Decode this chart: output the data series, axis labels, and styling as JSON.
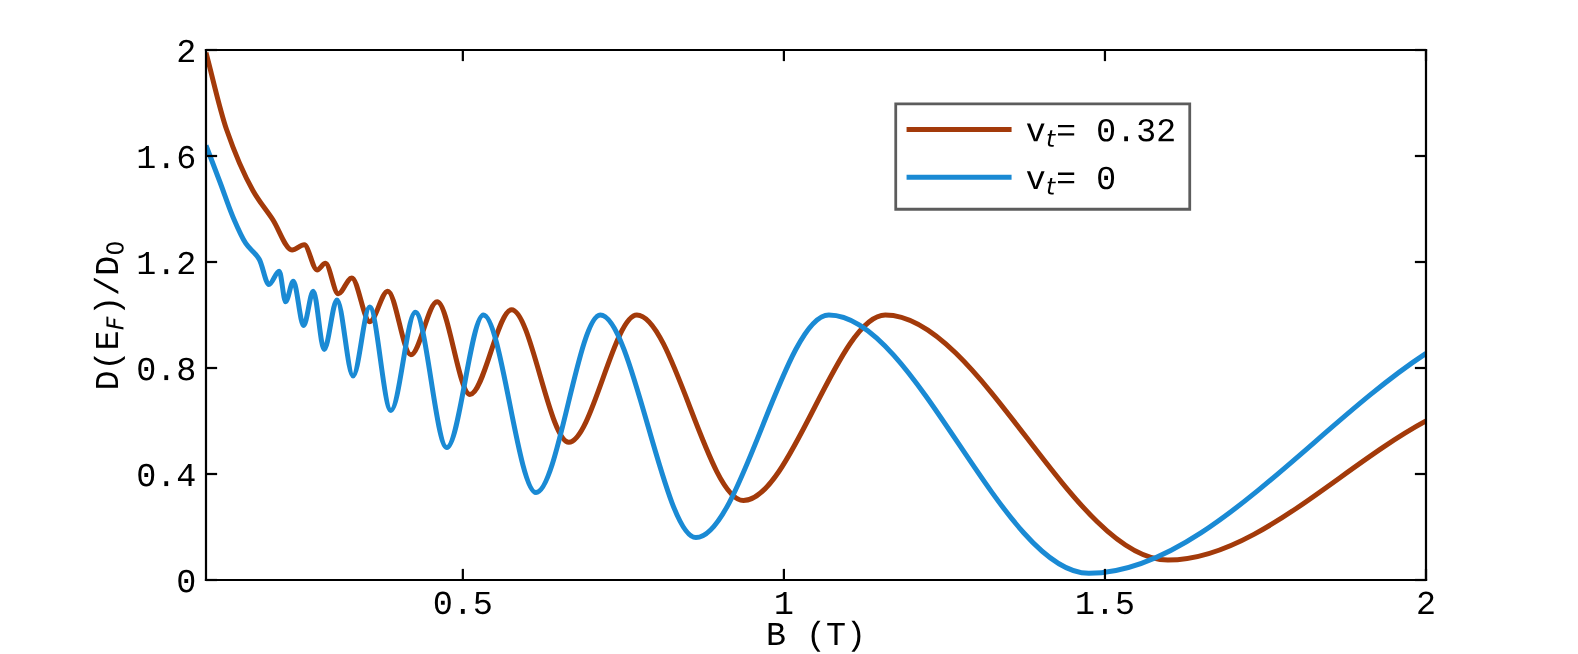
{
  "chart_data": {
    "type": "line",
    "xlabel": "B (T)",
    "ylabel": "D(E$_{F}$)/D$_{0}$",
    "xlim": [
      0.1,
      2
    ],
    "xticks": [
      0.5,
      1,
      1.5,
      2
    ],
    "ylim": [
      0,
      2
    ],
    "yticks": [
      0,
      0.4,
      0.8,
      1.2,
      1.6,
      2
    ],
    "grid": false,
    "legend": "top right",
    "line_style": "solid",
    "marker": "none",
    "series": [
      {
        "name": "v$_{t}$= 0.32",
        "color": "#a33a0a",
        "x": [
          0.1,
          0.132,
          0.173,
          0.204,
          0.234,
          0.253,
          0.273,
          0.286,
          0.306,
          0.327,
          0.355,
          0.383,
          0.419,
          0.46,
          0.511,
          0.576,
          0.665,
          0.771,
          0.937,
          1.158,
          1.598,
          2.0
        ],
        "values": [
          1.99,
          1.7,
          1.47,
          1.36,
          1.245,
          1.265,
          1.17,
          1.195,
          1.08,
          1.14,
          0.975,
          1.09,
          0.85,
          1.05,
          0.7,
          1.02,
          0.52,
          1.0,
          0.3,
          1.0,
          0.075,
          0.6
        ]
      },
      {
        "name": "v$_{t}$= 0",
        "color": "#1a8ad4",
        "x": [
          0.1,
          0.122,
          0.142,
          0.162,
          0.183,
          0.198,
          0.214,
          0.224,
          0.236,
          0.252,
          0.267,
          0.284,
          0.304,
          0.329,
          0.355,
          0.388,
          0.426,
          0.475,
          0.532,
          0.614,
          0.714,
          0.863,
          1.07,
          1.475,
          2.0
        ],
        "values": [
          1.64,
          1.5,
          1.37,
          1.27,
          1.21,
          1.115,
          1.165,
          1.05,
          1.127,
          0.96,
          1.09,
          0.87,
          1.057,
          0.77,
          1.03,
          0.64,
          1.01,
          0.5,
          1.0,
          0.33,
          1.0,
          0.16,
          1.0,
          0.025,
          0.855
        ]
      }
    ]
  }
}
